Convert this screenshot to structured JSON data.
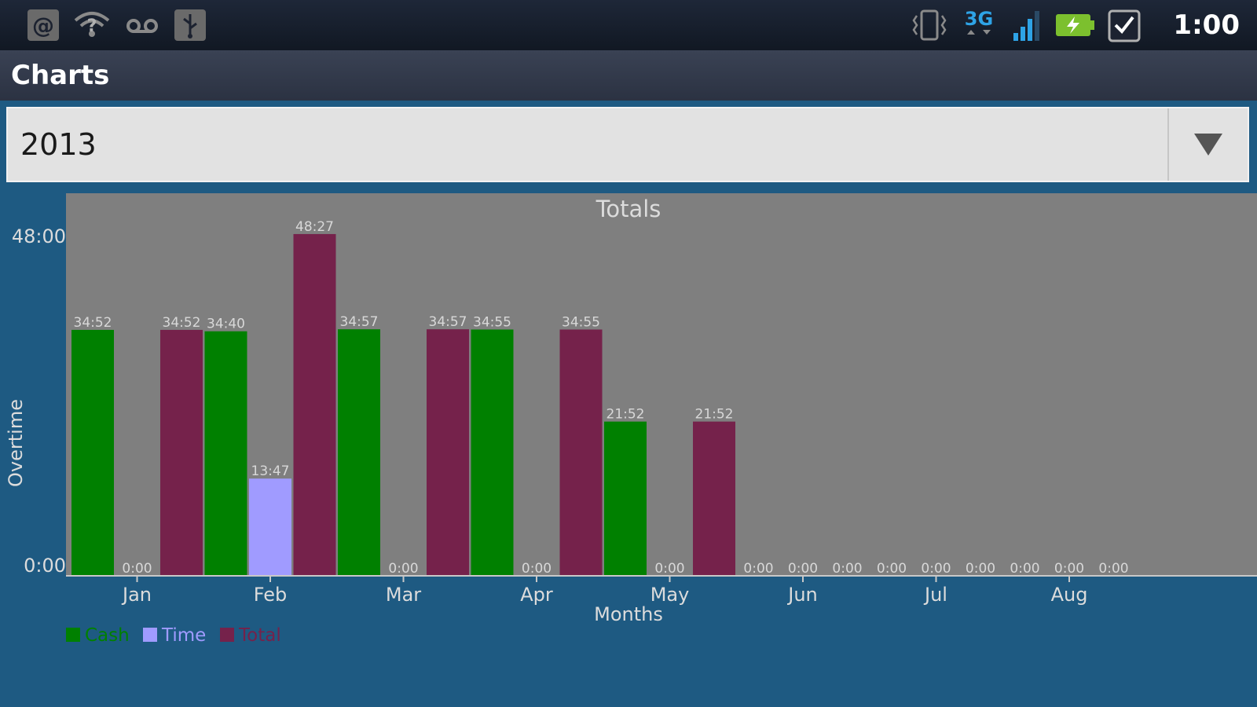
{
  "status_bar": {
    "time": "1:00",
    "network_label": "3G",
    "icons": [
      "email-icon",
      "wifi-icon",
      "voicemail-icon",
      "usb-icon",
      "vibrate-icon",
      "network-3g-icon",
      "signal-icon",
      "battery-charging-icon",
      "task-check-icon"
    ]
  },
  "title_bar": {
    "title": "Charts"
  },
  "year_selector": {
    "value": "2013",
    "icon": "dropdown-arrow-icon"
  },
  "colors": {
    "cash": "#008000",
    "time": "#a09bff",
    "total": "#75224b",
    "plot_background": "#7f7f7f",
    "page_background": "#1e5a82"
  },
  "chart_data": {
    "type": "bar",
    "title": "Totals",
    "xlabel": "Months",
    "ylabel": "Overtime",
    "ylim": [
      "0:00",
      "48:00"
    ],
    "y_ticks": [
      "0:00",
      "48:00"
    ],
    "categories": [
      "Jan",
      "Feb",
      "Mar",
      "Apr",
      "May",
      "Jun",
      "Jul",
      "Aug"
    ],
    "legend_placement": "bottom-left",
    "series": [
      {
        "name": "Cash",
        "values": [
          "34:52",
          "34:40",
          "34:57",
          "34:55",
          "21:52",
          "0:00",
          "0:00",
          "0:00"
        ]
      },
      {
        "name": "Time",
        "values": [
          "0:00",
          "13:47",
          "0:00",
          "0:00",
          "0:00",
          "0:00",
          "0:00",
          "0:00"
        ]
      },
      {
        "name": "Total",
        "values": [
          "34:52",
          "48:27",
          "34:57",
          "34:55",
          "21:52",
          "0:00",
          "0:00",
          "0:00"
        ]
      }
    ]
  }
}
